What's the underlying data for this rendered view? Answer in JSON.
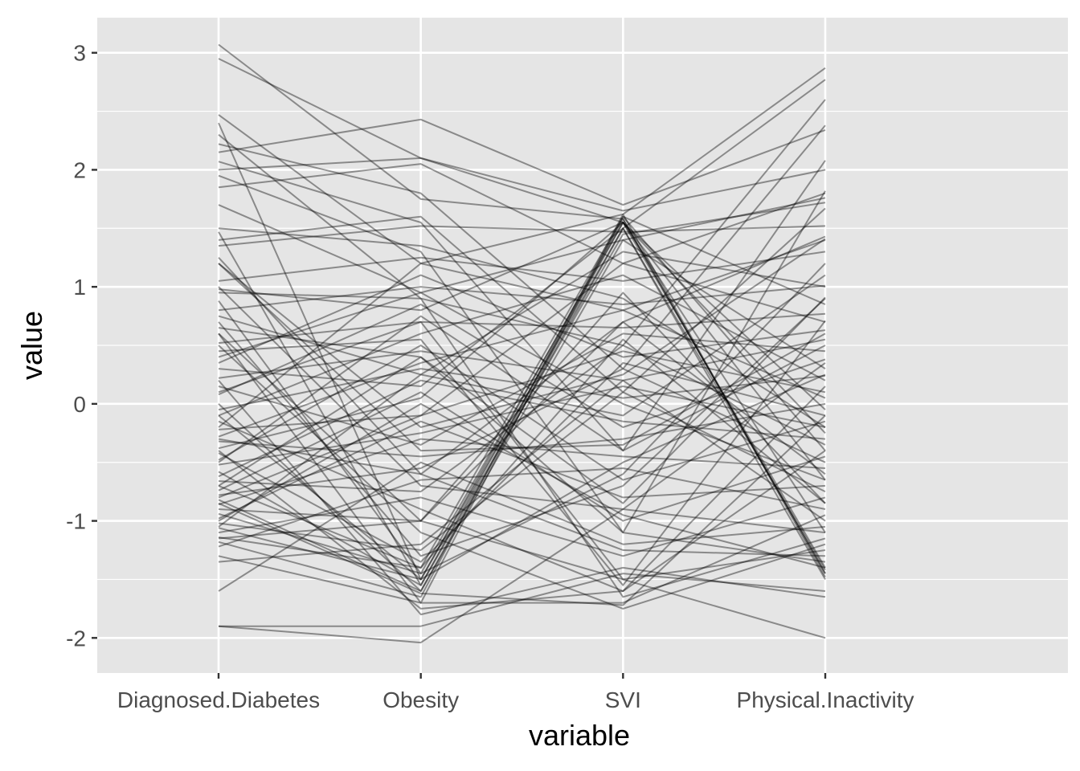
{
  "chart_data": {
    "type": "line",
    "subtype": "parallel-coordinates",
    "title": "",
    "xlabel": "variable",
    "ylabel": "value",
    "categories": [
      "Diagnosed.Diabetes",
      "Obesity",
      "SVI",
      "Physical.Inactivity"
    ],
    "ylim": [
      -2.3,
      3.3
    ],
    "yticks": [
      -2,
      -1,
      0,
      1,
      2,
      3
    ],
    "ytick_labels": [
      "-2",
      "-1",
      "0",
      "1",
      "2",
      "3"
    ],
    "grid": true,
    "legend": "none",
    "colors": {
      "panel": "#e5e5e5",
      "grid": "#ffffff",
      "line": "#000000"
    },
    "line_opacity": 0.4,
    "series": [
      {
        "values": [
          3.07,
          1.75,
          1.58,
          -1.45
        ]
      },
      {
        "values": [
          2.95,
          2.1,
          1.55,
          -1.4
        ]
      },
      {
        "values": [
          2.47,
          1.2,
          1.62,
          2.87
        ]
      },
      {
        "values": [
          2.4,
          -1.5,
          1.5,
          2.77
        ]
      },
      {
        "values": [
          2.3,
          0.9,
          0.5,
          2.6
        ]
      },
      {
        "values": [
          2.22,
          1.8,
          0.3,
          2.38
        ]
      },
      {
        "values": [
          2.15,
          2.43,
          1.7,
          2.34
        ]
      },
      {
        "values": [
          2.07,
          1.55,
          -0.4,
          2.08
        ]
      },
      {
        "values": [
          2.0,
          2.1,
          1.65,
          2.0
        ]
      },
      {
        "values": [
          1.95,
          1.3,
          -1.1,
          1.82
        ]
      },
      {
        "values": [
          1.85,
          2.05,
          1.2,
          1.8
        ]
      },
      {
        "values": [
          1.7,
          0.95,
          1.4,
          1.76
        ]
      },
      {
        "values": [
          1.47,
          -1.55,
          1.45,
          1.72
        ]
      },
      {
        "values": [
          1.4,
          1.6,
          0.1,
          1.67
        ]
      },
      {
        "values": [
          1.35,
          1.52,
          1.47,
          1.52
        ]
      },
      {
        "values": [
          1.25,
          -0.6,
          0.7,
          1.43
        ]
      },
      {
        "values": [
          1.2,
          -0.2,
          0.25,
          1.41
        ]
      },
      {
        "values": [
          1.05,
          1.25,
          1.05,
          1.3
        ]
      },
      {
        "values": [
          0.98,
          0.8,
          1.55,
          -1.1
        ]
      },
      {
        "values": [
          0.88,
          -1.45,
          -0.6,
          1.2
        ]
      },
      {
        "values": [
          0.8,
          1.0,
          0.85,
          1.01
        ]
      },
      {
        "values": [
          0.75,
          0.25,
          1.3,
          1.0
        ]
      },
      {
        "values": [
          0.65,
          0.4,
          -0.85,
          0.91
        ]
      },
      {
        "values": [
          0.6,
          -1.7,
          1.6,
          0.85
        ]
      },
      {
        "values": [
          0.52,
          0.7,
          0.65,
          0.77
        ]
      },
      {
        "values": [
          0.45,
          0.55,
          -1.55,
          0.71
        ]
      },
      {
        "values": [
          0.35,
          1.1,
          0.4,
          0.63
        ]
      },
      {
        "values": [
          0.3,
          0.15,
          1.5,
          -1.5
        ]
      },
      {
        "values": [
          0.22,
          0.45,
          0.2,
          0.55
        ]
      },
      {
        "values": [
          0.15,
          -0.35,
          0.6,
          0.45
        ]
      },
      {
        "values": [
          0.08,
          0.85,
          -0.2,
          0.38
        ]
      },
      {
        "values": [
          0.0,
          -1.6,
          1.4,
          0.3
        ]
      },
      {
        "values": [
          -0.05,
          0.3,
          0.05,
          0.24
        ]
      },
      {
        "values": [
          -0.1,
          0.6,
          1.1,
          0.2
        ]
      },
      {
        "values": [
          -0.15,
          -0.9,
          -1.6,
          0.15
        ]
      },
      {
        "values": [
          -0.22,
          -0.1,
          0.45,
          0.1
        ]
      },
      {
        "values": [
          -0.28,
          0.35,
          0.8,
          0.05
        ]
      },
      {
        "values": [
          -0.32,
          -0.45,
          -0.3,
          0.0
        ]
      },
      {
        "values": [
          -0.38,
          0.05,
          1.55,
          -0.05
        ]
      },
      {
        "values": [
          -0.42,
          -1.35,
          0.35,
          -0.1
        ]
      },
      {
        "values": [
          -0.48,
          0.5,
          -0.65,
          -0.15
        ]
      },
      {
        "values": [
          -0.52,
          -0.25,
          0.15,
          -0.2
        ]
      },
      {
        "values": [
          -0.58,
          -1.55,
          1.55,
          -0.25
        ]
      },
      {
        "values": [
          -0.62,
          0.2,
          -0.15,
          -0.3
        ]
      },
      {
        "values": [
          -0.66,
          -0.75,
          0.5,
          -0.35
        ]
      },
      {
        "values": [
          -0.7,
          -1.4,
          1.6,
          -0.4
        ]
      },
      {
        "values": [
          -0.74,
          0.1,
          -1.0,
          -0.45
        ]
      },
      {
        "values": [
          -0.78,
          -0.55,
          0.3,
          -0.5
        ]
      },
      {
        "values": [
          -0.82,
          -1.6,
          1.5,
          -1.42
        ]
      },
      {
        "values": [
          -0.86,
          -0.3,
          -0.45,
          -0.55
        ]
      },
      {
        "values": [
          -0.9,
          -1.0,
          0.7,
          -0.6
        ]
      },
      {
        "values": [
          -0.94,
          -1.45,
          1.55,
          -0.65
        ]
      },
      {
        "values": [
          -0.98,
          -0.15,
          -0.8,
          -0.7
        ]
      },
      {
        "values": [
          -1.02,
          -1.25,
          0.1,
          -0.75
        ]
      },
      {
        "values": [
          -1.06,
          -1.5,
          1.58,
          -1.45
        ]
      },
      {
        "values": [
          -1.1,
          -0.8,
          -1.3,
          -0.8
        ]
      },
      {
        "values": [
          -1.14,
          -1.4,
          0.55,
          -0.85
        ]
      },
      {
        "values": [
          -1.18,
          -1.65,
          1.62,
          -1.48
        ]
      },
      {
        "values": [
          -1.22,
          -0.65,
          -0.55,
          -0.9
        ]
      },
      {
        "values": [
          -1.3,
          -1.7,
          -1.7,
          -0.95
        ]
      },
      {
        "values": [
          -1.35,
          -1.2,
          0.2,
          -1.0
        ]
      },
      {
        "values": [
          -1.6,
          -0.5,
          -1.2,
          -1.05
        ]
      },
      {
        "values": [
          -1.9,
          -1.9,
          -1.45,
          -1.6
        ]
      },
      {
        "values": [
          -1.9,
          -2.04,
          -0.9,
          -1.1
        ]
      },
      {
        "values": [
          0.95,
          0.9,
          -1.65,
          -1.15
        ]
      },
      {
        "values": [
          0.5,
          -1.1,
          -1.75,
          -1.2
        ]
      },
      {
        "values": [
          0.1,
          0.7,
          -1.5,
          -1.25
        ]
      },
      {
        "values": [
          -0.3,
          -0.6,
          -1.25,
          -1.3
        ]
      },
      {
        "values": [
          -0.7,
          0.4,
          -1.1,
          -1.35
        ]
      },
      {
        "values": [
          -1.0,
          0.0,
          -0.95,
          -1.4
        ]
      },
      {
        "values": [
          1.5,
          1.35,
          0.9,
          -0.2
        ]
      },
      {
        "values": [
          1.2,
          -0.4,
          -0.35,
          0.6
        ]
      },
      {
        "values": [
          0.7,
          -1.3,
          -0.7,
          0.9
        ]
      },
      {
        "values": [
          0.4,
          0.95,
          0.0,
          -0.65
        ]
      },
      {
        "values": [
          -0.2,
          1.2,
          0.8,
          1.4
        ]
      },
      {
        "values": [
          -0.5,
          0.75,
          -0.4,
          0.5
        ]
      },
      {
        "values": [
          -0.8,
          -0.1,
          1.2,
          0.7
        ]
      },
      {
        "values": [
          -1.05,
          0.25,
          -0.1,
          1.1
        ]
      },
      {
        "values": [
          -1.15,
          -1.0,
          -1.5,
          -2.0
        ]
      },
      {
        "values": [
          0.2,
          -1.8,
          -1.4,
          -1.65
        ]
      },
      {
        "values": [
          -0.4,
          -1.75,
          -1.6,
          -0.4
        ]
      },
      {
        "values": [
          -0.85,
          -1.62,
          -1.72,
          -0.1
        ]
      },
      {
        "values": [
          1.0,
          -0.7,
          -0.9,
          0.35
        ]
      },
      {
        "values": [
          0.6,
          -1.0,
          0.95,
          -0.85
        ]
      },
      {
        "values": [
          -0.1,
          -1.5,
          -0.5,
          0.25
        ]
      }
    ]
  }
}
